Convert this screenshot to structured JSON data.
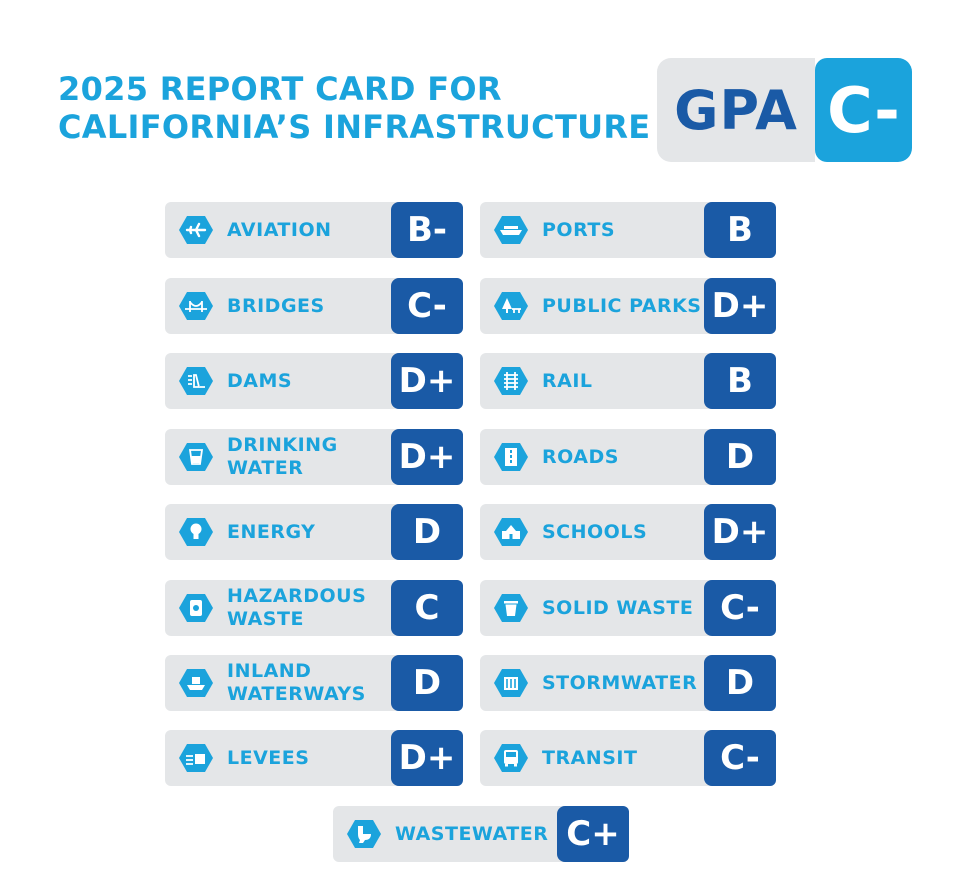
{
  "header": {
    "title_line1": "2025 REPORT CARD FOR",
    "title_line2": "CALIFORNIA’S INFRASTRUCTURE",
    "gpa_label": "GPA",
    "gpa_grade": "C-"
  },
  "colors": {
    "accent_light_blue": "#1ba3dc",
    "accent_dark_blue": "#1a5aa6",
    "card_background": "#e4e6e8"
  },
  "categories": [
    {
      "line1": "AVIATION",
      "line2": "",
      "grade": "B-",
      "icon": "airplane-icon"
    },
    {
      "line1": "BRIDGES",
      "line2": "",
      "grade": "C-",
      "icon": "bridge-icon"
    },
    {
      "line1": "DAMS",
      "line2": "",
      "grade": "D+",
      "icon": "dam-icon"
    },
    {
      "line1": "DRINKING",
      "line2": "WATER",
      "grade": "D+",
      "icon": "water-glass-icon"
    },
    {
      "line1": "ENERGY",
      "line2": "",
      "grade": "D",
      "icon": "lightbulb-icon"
    },
    {
      "line1": "HAZARDOUS",
      "line2": "WASTE",
      "grade": "C",
      "icon": "hazard-barrel-icon"
    },
    {
      "line1": "INLAND",
      "line2": "WATERWAYS",
      "grade": "D",
      "icon": "boat-icon"
    },
    {
      "line1": "LEVEES",
      "line2": "",
      "grade": "D+",
      "icon": "levee-icon"
    },
    {
      "line1": "PORTS",
      "line2": "",
      "grade": "B",
      "icon": "ship-icon"
    },
    {
      "line1": "PUBLIC PARKS",
      "line2": "",
      "grade": "D+",
      "icon": "park-icon"
    },
    {
      "line1": "RAIL",
      "line2": "",
      "grade": "B",
      "icon": "rail-icon"
    },
    {
      "line1": "ROADS",
      "line2": "",
      "grade": "D",
      "icon": "road-icon"
    },
    {
      "line1": "SCHOOLS",
      "line2": "",
      "grade": "D+",
      "icon": "school-icon"
    },
    {
      "line1": "SOLID WASTE",
      "line2": "",
      "grade": "C-",
      "icon": "trash-can-icon"
    },
    {
      "line1": "STORMWATER",
      "line2": "",
      "grade": "D",
      "icon": "storm-drain-icon"
    },
    {
      "line1": "TRANSIT",
      "line2": "",
      "grade": "C-",
      "icon": "bus-icon"
    },
    {
      "line1": "WASTEWATER",
      "line2": "",
      "grade": "C+",
      "icon": "toilet-icon"
    }
  ]
}
